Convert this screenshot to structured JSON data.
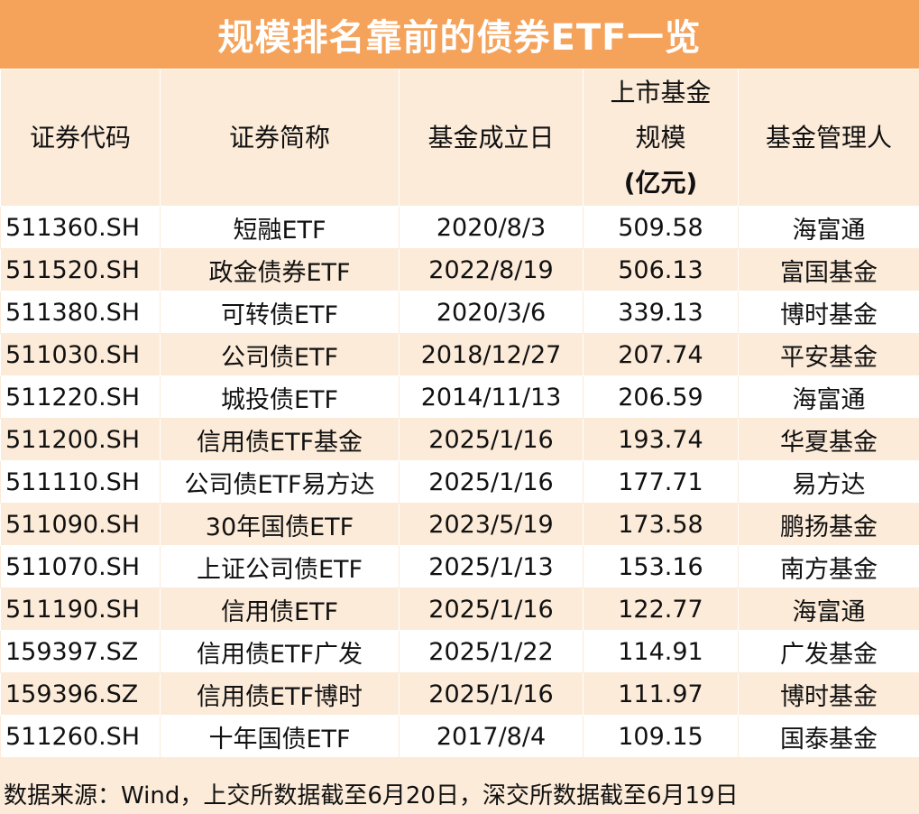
{
  "title": "规模排名靠前的债券ETF一览",
  "headers": {
    "code": "证券代码",
    "name": "证券简称",
    "date": "基金成立日",
    "scale_line1": "上市基金",
    "scale_line2": "规模",
    "scale_line3": "(亿元)",
    "manager": "基金管理人"
  },
  "rows": [
    {
      "code": "511360.SH",
      "name": "短融ETF",
      "date": "2020/8/3",
      "scale": "509.58",
      "manager": "海富通"
    },
    {
      "code": "511520.SH",
      "name": "政金债券ETF",
      "date": "2022/8/19",
      "scale": "506.13",
      "manager": "富国基金"
    },
    {
      "code": "511380.SH",
      "name": "可转债ETF",
      "date": "2020/3/6",
      "scale": "339.13",
      "manager": "博时基金"
    },
    {
      "code": "511030.SH",
      "name": "公司债ETF",
      "date": "2018/12/27",
      "scale": "207.74",
      "manager": "平安基金"
    },
    {
      "code": "511220.SH",
      "name": "城投债ETF",
      "date": "2014/11/13",
      "scale": "206.59",
      "manager": "海富通"
    },
    {
      "code": "511200.SH",
      "name": "信用债ETF基金",
      "date": "2025/1/16",
      "scale": "193.74",
      "manager": "华夏基金"
    },
    {
      "code": "511110.SH",
      "name": "公司债ETF易方达",
      "date": "2025/1/16",
      "scale": "177.71",
      "manager": "易方达"
    },
    {
      "code": "511090.SH",
      "name": "30年国债ETF",
      "date": "2023/5/19",
      "scale": "173.58",
      "manager": "鹏扬基金"
    },
    {
      "code": "511070.SH",
      "name": "上证公司债ETF",
      "date": "2025/1/13",
      "scale": "153.16",
      "manager": "南方基金"
    },
    {
      "code": "511190.SH",
      "name": "信用债ETF",
      "date": "2025/1/16",
      "scale": "122.77",
      "manager": "海富通"
    },
    {
      "code": "159397.SZ",
      "name": "信用债ETF广发",
      "date": "2025/1/22",
      "scale": "114.91",
      "manager": "广发基金"
    },
    {
      "code": "159396.SZ",
      "name": "信用债ETF博时",
      "date": "2025/1/16",
      "scale": "111.97",
      "manager": "博时基金"
    },
    {
      "code": "511260.SH",
      "name": "十年国债ETF",
      "date": "2017/8/4",
      "scale": "109.15",
      "manager": "国泰基金"
    }
  ],
  "footer": "数据来源：Wind，上交所数据截至6月20日，深交所数据截至6月19日",
  "colors": {
    "title_bg": "#f5a25a",
    "band": "#fcebd9",
    "white": "#ffffff"
  }
}
